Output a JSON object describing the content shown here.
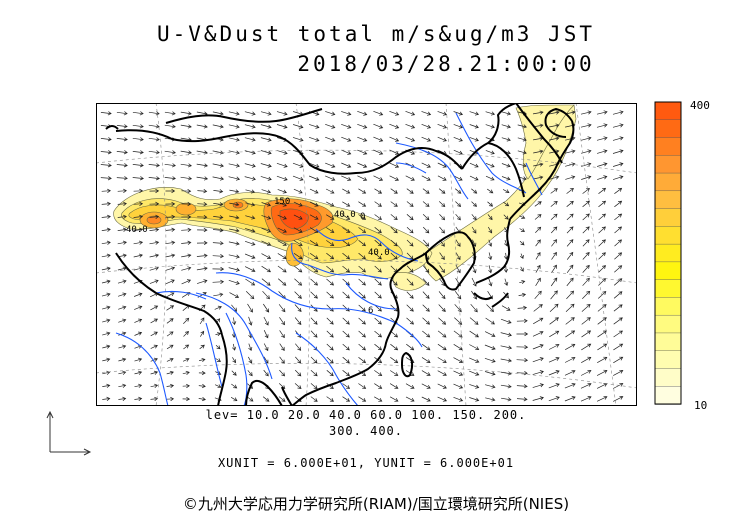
{
  "title": {
    "line1": "U-V&Dust total m/s&ug/m3 JST",
    "line2": "2018/03/28.21:00:00"
  },
  "colorbar": {
    "max_label": "400",
    "min_label": "10",
    "colors": [
      "#ff5a10",
      "#ff6a14",
      "#ff8020",
      "#ff9630",
      "#ffab38",
      "#ffbe40",
      "#ffcf3a",
      "#ffdf30",
      "#ffec20",
      "#fff510",
      "#fff830",
      "#fffa60",
      "#fffb80",
      "#fffc98",
      "#fffdb0",
      "#fffdc8",
      "#fffee0"
    ]
  },
  "contour_labels": {
    "l150": "150",
    "l40a": "40.0",
    "l40b": "40.0",
    "l40c": "40.0",
    "l0": "0",
    "l6": "6"
  },
  "levels": {
    "line1": "lev= 10.0 20.0 40.0 60.0 100. 150. 200.",
    "line2": "300. 400."
  },
  "units": "XUNIT = 6.000E+01, YUNIT = 6.000E+01",
  "copyright": "©九州大学応用力学研究所(RIAM)/国立環境研究所(NIES)",
  "colors": {
    "coast": "#000000",
    "river": "#1e5aff",
    "arrow": "#222222",
    "grid": "#777777"
  }
}
